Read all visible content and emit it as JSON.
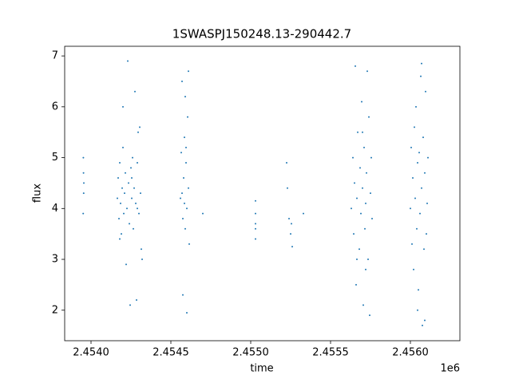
{
  "chart_data": {
    "type": "scatter",
    "title": "1SWASPJ150248.13-290442.7",
    "x_label": "time",
    "y_label": "flux",
    "x_offset_label": "1e6",
    "color": "#1f77b4",
    "xlim": [
      2453835,
      2456310
    ],
    "ylim": [
      1.4,
      7.19
    ],
    "xticks": [
      {
        "value": 2454000,
        "label": "2.4540"
      },
      {
        "value": 2454500,
        "label": "2.4545"
      },
      {
        "value": 2455000,
        "label": "2.4550"
      },
      {
        "value": 2455500,
        "label": "2.4555"
      },
      {
        "value": 2456000,
        "label": "2.4560"
      }
    ],
    "yticks": [
      2,
      3,
      4,
      5,
      6,
      7
    ],
    "x": [
      2453952,
      2453953,
      2453954,
      2453955,
      2453951,
      2454165,
      2454170,
      2454175,
      2454180,
      2454185,
      2454190,
      2454195,
      2454200,
      2454205,
      2454210,
      2454215,
      2454220,
      2454225,
      2454230,
      2454235,
      2454240,
      2454245,
      2454250,
      2454255,
      2454260,
      2454265,
      2454270,
      2454275,
      2454280,
      2454285,
      2454290,
      2454295,
      2454300,
      2454305,
      2454310,
      2454315,
      2454320,
      2454200,
      2454180,
      2454255,
      2454290,
      2454560,
      2454565,
      2454570,
      2454575,
      2454580,
      2454585,
      2454590,
      2454595,
      2454600,
      2454605,
      2454610,
      2454615,
      2454575,
      2454600,
      2454590,
      2454570,
      2454610,
      2454700,
      2454585,
      2454595,
      2455030,
      2455030,
      2455030,
      2455030,
      2455030,
      2455225,
      2455230,
      2455240,
      2455250,
      2455255,
      2455260,
      2455330,
      2455630,
      2455640,
      2455645,
      2455650,
      2455655,
      2455660,
      2455665,
      2455670,
      2455680,
      2455685,
      2455690,
      2455695,
      2455700,
      2455705,
      2455710,
      2455715,
      2455720,
      2455725,
      2455730,
      2455735,
      2455740,
      2455745,
      2455750,
      2455755,
      2455760,
      2455665,
      2455700,
      2455720,
      2456000,
      2456005,
      2456010,
      2456015,
      2456020,
      2456025,
      2456030,
      2456035,
      2456040,
      2456045,
      2456050,
      2456055,
      2456060,
      2456065,
      2456070,
      2456075,
      2456080,
      2456085,
      2456090,
      2456095,
      2456100,
      2456105,
      2456110,
      2456070,
      2456045,
      2456090
    ],
    "y": [
      5.0,
      4.7,
      4.3,
      4.5,
      3.9,
      4.2,
      4.6,
      3.8,
      4.9,
      4.1,
      3.5,
      4.4,
      5.2,
      3.9,
      4.3,
      4.7,
      2.9,
      4.0,
      6.9,
      4.5,
      3.7,
      2.1,
      4.8,
      4.2,
      5.0,
      3.6,
      4.4,
      6.3,
      4.1,
      2.2,
      4.9,
      5.5,
      3.9,
      5.6,
      4.3,
      3.2,
      3.0,
      6.0,
      3.4,
      4.6,
      4.0,
      4.2,
      5.1,
      6.5,
      3.8,
      4.6,
      5.4,
      3.6,
      4.9,
      4.0,
      5.8,
      4.4,
      3.3,
      2.3,
      1.95,
      6.2,
      4.3,
      6.7,
      3.9,
      4.1,
      5.2,
      3.4,
      3.7,
      3.9,
      4.15,
      3.6,
      4.9,
      4.4,
      3.8,
      3.5,
      3.7,
      3.25,
      3.9,
      4.0,
      5.0,
      3.5,
      4.5,
      6.8,
      2.5,
      4.2,
      5.5,
      3.2,
      4.8,
      3.9,
      6.1,
      4.4,
      2.1,
      5.2,
      3.6,
      4.1,
      4.7,
      6.7,
      3.0,
      5.8,
      1.9,
      4.3,
      5.0,
      3.8,
      3.0,
      5.5,
      2.8,
      4.0,
      5.2,
      3.3,
      4.6,
      2.8,
      5.6,
      4.2,
      6.0,
      3.6,
      4.9,
      2.4,
      5.1,
      3.9,
      6.6,
      4.4,
      1.7,
      5.4,
      3.2,
      4.7,
      6.3,
      3.5,
      4.1,
      5.0,
      6.85,
      2.0,
      1.8
    ]
  }
}
